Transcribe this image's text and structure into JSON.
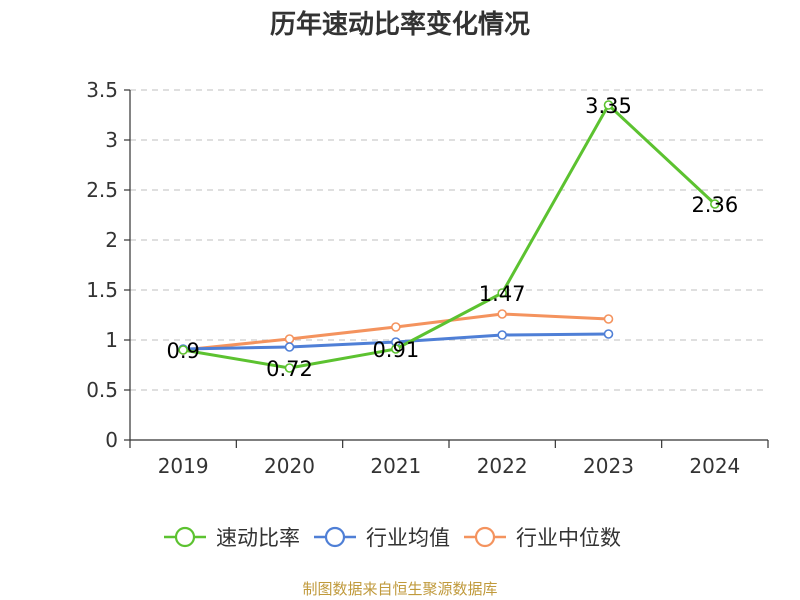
{
  "chart_data": {
    "type": "line",
    "title": "历年速动比率变化情况",
    "source": "制图数据来自恒生聚源数据库",
    "categories": [
      "2019",
      "2020",
      "2021",
      "2022",
      "2023",
      "2024"
    ],
    "ylim": [
      0,
      3.5
    ],
    "yticks": [
      "0",
      "0.5",
      "1",
      "1.5",
      "2",
      "2.5",
      "3",
      "3.5"
    ],
    "grid": true,
    "legend_position": "bottom",
    "series": [
      {
        "name": "速动比率",
        "color": "#5cc230",
        "values": [
          0.9,
          0.72,
          0.91,
          1.47,
          3.35,
          2.36
        ],
        "data_labels": [
          "0.9",
          "0.72",
          "0.91",
          "1.47",
          "3.35",
          "2.36"
        ]
      },
      {
        "name": "行业均值",
        "color": "#4f7fd6",
        "values": [
          0.91,
          0.93,
          0.98,
          1.05,
          1.06,
          null
        ]
      },
      {
        "name": "行业中位数",
        "color": "#f4935e",
        "values": [
          0.9,
          1.01,
          1.13,
          1.26,
          1.21,
          null
        ]
      }
    ]
  }
}
